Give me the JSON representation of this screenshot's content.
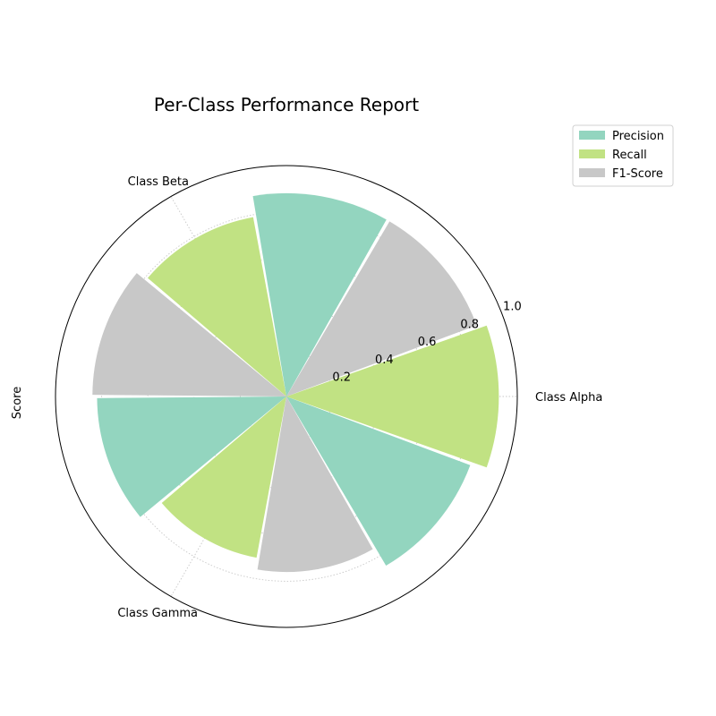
{
  "chart_data": {
    "type": "polar-bar",
    "title": "Per-Class Performance Report",
    "ylabel": "Score",
    "categories": [
      "Class Alpha",
      "Class Beta",
      "Class Gamma"
    ],
    "series": [
      {
        "name": "Precision",
        "color": "#93d5bf",
        "values": [
          0.85,
          0.88,
          0.82
        ]
      },
      {
        "name": "Recall",
        "color": "#c1e283",
        "values": [
          0.92,
          0.79,
          0.71
        ]
      },
      {
        "name": "F1-Score",
        "color": "#c8c8c8",
        "values": [
          0.88,
          0.84,
          0.76
        ]
      }
    ],
    "rlim": [
      0,
      1.0
    ],
    "rticks": [
      "0.2",
      "0.4",
      "0.6",
      "0.8",
      "1.0"
    ],
    "grid": true,
    "legend": "upper-right"
  }
}
